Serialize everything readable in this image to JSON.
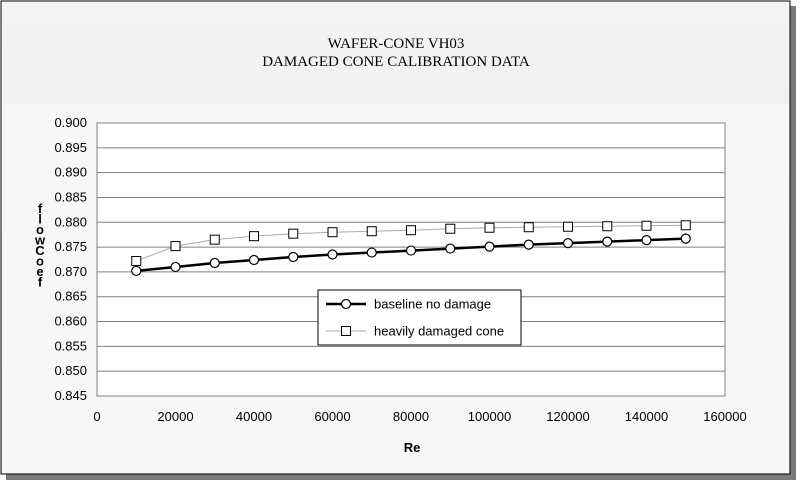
{
  "chart_data": {
    "type": "line",
    "title_lines": [
      "WAFER-CONE VH03",
      "DAMAGED CONE CALIBRATION DATA"
    ],
    "xlabel": "Re",
    "ylabel": "flow Coef",
    "xlim": [
      0,
      160000
    ],
    "ylim": [
      0.845,
      0.9
    ],
    "x_ticks": [
      "0",
      "20000",
      "40000",
      "60000",
      "80000",
      "100000",
      "120000",
      "140000",
      "160000"
    ],
    "y_ticks": [
      "0.900",
      "0.895",
      "0.890",
      "0.885",
      "0.880",
      "0.875",
      "0.870",
      "0.865",
      "0.860",
      "0.855",
      "0.850",
      "0.845"
    ],
    "grid": true,
    "legend_position": "lower-center",
    "x": [
      10000,
      20000,
      30000,
      40000,
      50000,
      60000,
      70000,
      80000,
      90000,
      100000,
      110000,
      120000,
      130000,
      140000,
      150000
    ],
    "series": [
      {
        "name": "baseline no damage",
        "marker": "circle",
        "color": "#000000",
        "values": [
          0.8702,
          0.871,
          0.8718,
          0.8724,
          0.873,
          0.8735,
          0.8739,
          0.8743,
          0.8747,
          0.8751,
          0.8755,
          0.8758,
          0.8761,
          0.8764,
          0.8767
        ]
      },
      {
        "name": "heavily damaged cone",
        "marker": "square",
        "color": "#aaaaaa",
        "values": [
          0.8722,
          0.8752,
          0.8765,
          0.8772,
          0.8777,
          0.878,
          0.8782,
          0.8784,
          0.8787,
          0.8789,
          0.879,
          0.8791,
          0.8792,
          0.8793,
          0.8794
        ]
      }
    ]
  }
}
